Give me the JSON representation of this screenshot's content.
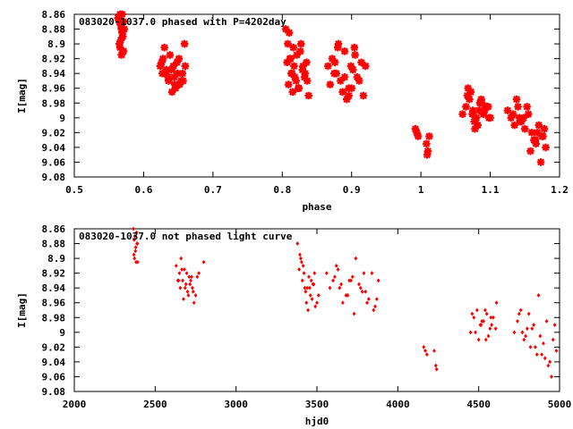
{
  "chart_data": [
    {
      "type": "scatter",
      "title": "083020-1037.0 phased with P=4202day",
      "xlabel": "phase",
      "ylabel": "I[mag]",
      "xlim": [
        0.5,
        1.2
      ],
      "ylim": [
        8.86,
        9.08
      ],
      "y_inverted": true,
      "x_ticks": [
        0.5,
        0.6,
        0.7,
        0.8,
        0.9,
        1,
        1.1,
        1.2
      ],
      "x_tick_labels": [
        "0.5",
        "0.6",
        "0.7",
        "0.8",
        "0.9",
        "1",
        "1.1",
        "1.2"
      ],
      "y_ticks": [
        8.86,
        8.88,
        8.9,
        8.92,
        8.94,
        8.96,
        8.98,
        9,
        9.02,
        9.04,
        9.06,
        9.08
      ],
      "y_tick_labels": [
        "8.86",
        "8.88",
        "8.9",
        "8.92",
        "8.94",
        "8.96",
        "8.98",
        "9",
        "9.02",
        "9.04",
        "9.06",
        "9.08"
      ],
      "marker": "star",
      "color": "#ff0000",
      "series": [
        {
          "x": [
            0.563,
            0.565,
            0.566,
            0.567,
            0.568,
            0.569,
            0.569,
            0.57,
            0.571,
            0.572,
            0.566,
            0.568,
            0.565,
            0.571,
            0.567,
            0.624,
            0.628,
            0.632,
            0.636,
            0.64,
            0.644,
            0.648,
            0.652,
            0.656,
            0.66,
            0.63,
            0.638,
            0.646,
            0.654,
            0.627,
            0.635,
            0.643,
            0.651,
            0.659,
            0.633,
            0.641,
            0.649,
            0.657,
            0.626,
            0.645,
            0.805,
            0.808,
            0.811,
            0.814,
            0.817,
            0.82,
            0.823,
            0.826,
            0.829,
            0.832,
            0.835,
            0.838,
            0.809,
            0.815,
            0.821,
            0.827,
            0.833,
            0.812,
            0.818,
            0.824,
            0.83,
            0.836,
            0.807,
            0.813,
            0.81,
            0.816,
            0.866,
            0.872,
            0.878,
            0.884,
            0.89,
            0.896,
            0.902,
            0.908,
            0.914,
            0.92,
            0.869,
            0.875,
            0.881,
            0.887,
            0.893,
            0.899,
            0.905,
            0.911,
            0.917,
            0.88,
            0.89,
            0.9,
            0.876,
            0.896,
            0.904,
            0.992,
            0.994,
            0.996,
            1.008,
            1.01,
            1.012,
            1.009,
            1.06,
            1.065,
            1.07,
            1.075,
            1.08,
            1.085,
            1.09,
            1.095,
            1.1,
            1.072,
            1.082,
            1.092,
            1.067,
            1.077,
            1.087,
            1.097,
            1.068,
            1.078,
            1.088,
            1.098,
            1.074,
            1.084,
            1.094,
            1.125,
            1.13,
            1.135,
            1.14,
            1.145,
            1.15,
            1.155,
            1.16,
            1.165,
            1.17,
            1.175,
            1.18,
            1.138,
            1.148,
            1.158,
            1.168,
            1.178,
            1.133,
            1.143,
            1.153,
            1.163,
            1.173,
            1.142,
            1.166,
            1.176
          ],
          "y": [
            8.865,
            8.87,
            8.86,
            8.875,
            8.88,
            8.885,
            8.86,
            8.89,
            8.87,
            8.88,
            8.905,
            8.915,
            8.9,
            8.91,
            8.895,
            8.93,
            8.92,
            8.94,
            8.95,
            8.935,
            8.945,
            8.925,
            8.955,
            8.94,
            8.93,
            8.905,
            8.915,
            8.96,
            8.95,
            8.94,
            8.945,
            8.93,
            8.92,
            8.9,
            8.935,
            8.965,
            8.94,
            8.95,
            8.925,
            8.955,
            8.88,
            8.9,
            8.92,
            8.94,
            8.93,
            8.95,
            8.96,
            8.91,
            8.935,
            8.945,
            8.925,
            8.97,
            8.955,
            8.965,
            8.915,
            8.9,
            8.94,
            8.92,
            8.945,
            8.96,
            8.93,
            8.95,
            8.925,
            8.94,
            8.885,
            8.905,
            8.93,
            8.92,
            8.94,
            8.95,
            8.91,
            8.96,
            8.935,
            8.945,
            8.925,
            8.93,
            8.955,
            8.94,
            8.9,
            8.965,
            8.975,
            8.93,
            8.915,
            8.95,
            8.97,
            8.905,
            8.945,
            8.96,
            8.925,
            8.97,
            8.905,
            9.015,
            9.02,
            9.025,
            9.035,
            9.045,
            9.025,
            9.05,
            8.995,
            8.985,
            8.975,
            8.99,
            9.0,
            8.98,
            8.995,
            8.985,
            9.0,
            8.965,
            9.01,
            8.99,
            8.97,
            9.005,
            8.975,
            8.985,
            8.96,
            9.015,
            8.98,
            9.0,
            8.995,
            8.99,
            8.985,
            8.99,
            9.0,
            9.01,
            8.985,
            9.005,
            9.015,
            8.995,
            9.02,
            9.03,
            9.01,
            9.025,
            9.04,
            8.975,
            9.0,
            9.045,
            9.02,
            9.015,
            8.995,
            9.005,
            8.985,
            9.03,
            9.06,
            9.0,
            9.035,
            9.025
          ]
        }
      ]
    },
    {
      "type": "scatter",
      "title": "083020-1037.0 not phased light curve",
      "xlabel": "hjd0",
      "ylabel": "I[mag]",
      "xlim": [
        2000,
        5000
      ],
      "ylim": [
        8.86,
        9.08
      ],
      "y_inverted": true,
      "x_ticks": [
        2000,
        2500,
        3000,
        3500,
        4000,
        4500,
        5000
      ],
      "x_tick_labels": [
        "2000",
        "2500",
        "3000",
        "3500",
        "4000",
        "4500",
        "5000"
      ],
      "y_ticks": [
        8.86,
        8.88,
        8.9,
        8.92,
        8.94,
        8.96,
        8.98,
        9,
        9.02,
        9.04,
        9.06,
        9.08
      ],
      "y_tick_labels": [
        "8.86",
        "8.88",
        "8.9",
        "8.92",
        "8.94",
        "8.96",
        "8.98",
        "9",
        "9.02",
        "9.04",
        "9.06",
        "9.08"
      ],
      "marker": "diamond",
      "color": "#ff0000",
      "series": [
        {
          "x": [
            2365,
            2370,
            2375,
            2380,
            2385,
            2390,
            2372,
            2382,
            2378,
            2388,
            2368,
            2392,
            2630,
            2650,
            2670,
            2690,
            2710,
            2730,
            2750,
            2770,
            2640,
            2660,
            2680,
            2700,
            2720,
            2740,
            2760,
            2655,
            2675,
            2695,
            2715,
            2735,
            2645,
            2665,
            2685,
            2705,
            2725,
            2800,
            3380,
            3400,
            3420,
            3440,
            3460,
            3480,
            3500,
            3390,
            3410,
            3430,
            3450,
            3470,
            3490,
            3405,
            3425,
            3445,
            3465,
            3485,
            3395,
            3415,
            3435,
            3455,
            3475,
            3510,
            3560,
            3600,
            3640,
            3680,
            3720,
            3760,
            3800,
            3840,
            3880,
            3580,
            3620,
            3660,
            3700,
            3740,
            3780,
            3820,
            3860,
            3610,
            3650,
            3690,
            3730,
            3770,
            3810,
            3850,
            3630,
            3710,
            3790,
            3870,
            4160,
            4170,
            4180,
            4225,
            4235,
            4240,
            4450,
            4470,
            4490,
            4510,
            4530,
            4550,
            4570,
            4590,
            4610,
            4480,
            4500,
            4520,
            4540,
            4560,
            4580,
            4460,
            4515,
            4545,
            4575,
            4605,
            4720,
            4740,
            4760,
            4780,
            4800,
            4820,
            4840,
            4860,
            4880,
            4900,
            4920,
            4940,
            4960,
            4980,
            4750,
            4790,
            4830,
            4870,
            4910,
            4950,
            4770,
            4850,
            4930,
            4970,
            4810,
            4890
          ],
          "y": [
            8.86,
            8.875,
            8.87,
            8.885,
            8.865,
            8.88,
            8.9,
            8.905,
            8.89,
            8.88,
            8.895,
            8.905,
            8.91,
            8.92,
            8.93,
            8.935,
            8.925,
            8.94,
            8.95,
            8.92,
            8.93,
            8.9,
            8.915,
            8.945,
            8.93,
            8.96,
            8.925,
            8.94,
            8.955,
            8.92,
            8.935,
            8.945,
            8.93,
            8.915,
            8.94,
            8.95,
            8.925,
            8.905,
            8.88,
            8.9,
            8.92,
            8.94,
            8.95,
            8.935,
            8.96,
            8.915,
            8.93,
            8.945,
            8.925,
            8.955,
            8.965,
            8.905,
            8.94,
            8.97,
            8.93,
            8.92,
            8.895,
            8.91,
            8.96,
            8.94,
            8.935,
            8.95,
            8.92,
            8.93,
            8.94,
            8.95,
            8.925,
            8.935,
            8.945,
            8.92,
            8.93,
            8.94,
            8.91,
            8.96,
            8.93,
            8.9,
            8.945,
            8.955,
            8.965,
            8.925,
            8.935,
            8.95,
            8.975,
            8.94,
            8.96,
            8.97,
            8.915,
            8.93,
            8.92,
            8.955,
            9.02,
            9.025,
            9.03,
            9.025,
            9.045,
            9.05,
            9.0,
            8.98,
            8.97,
            8.99,
            8.985,
            8.975,
            8.995,
            8.98,
            8.96,
            9.0,
            9.01,
            8.985,
            8.97,
            9.005,
            8.99,
            8.975,
            8.99,
            9.01,
            8.98,
            8.995,
            9.0,
            8.985,
            8.97,
            9.01,
            8.995,
            9.02,
            8.99,
            9.03,
            9.005,
            9.015,
            8.985,
            9.04,
            9.01,
            9.025,
            8.975,
            9.005,
            8.995,
            8.95,
            9.035,
            9.06,
            9.0,
            9.02,
            9.045,
            8.99,
            8.975,
            9.03
          ]
        }
      ]
    }
  ]
}
